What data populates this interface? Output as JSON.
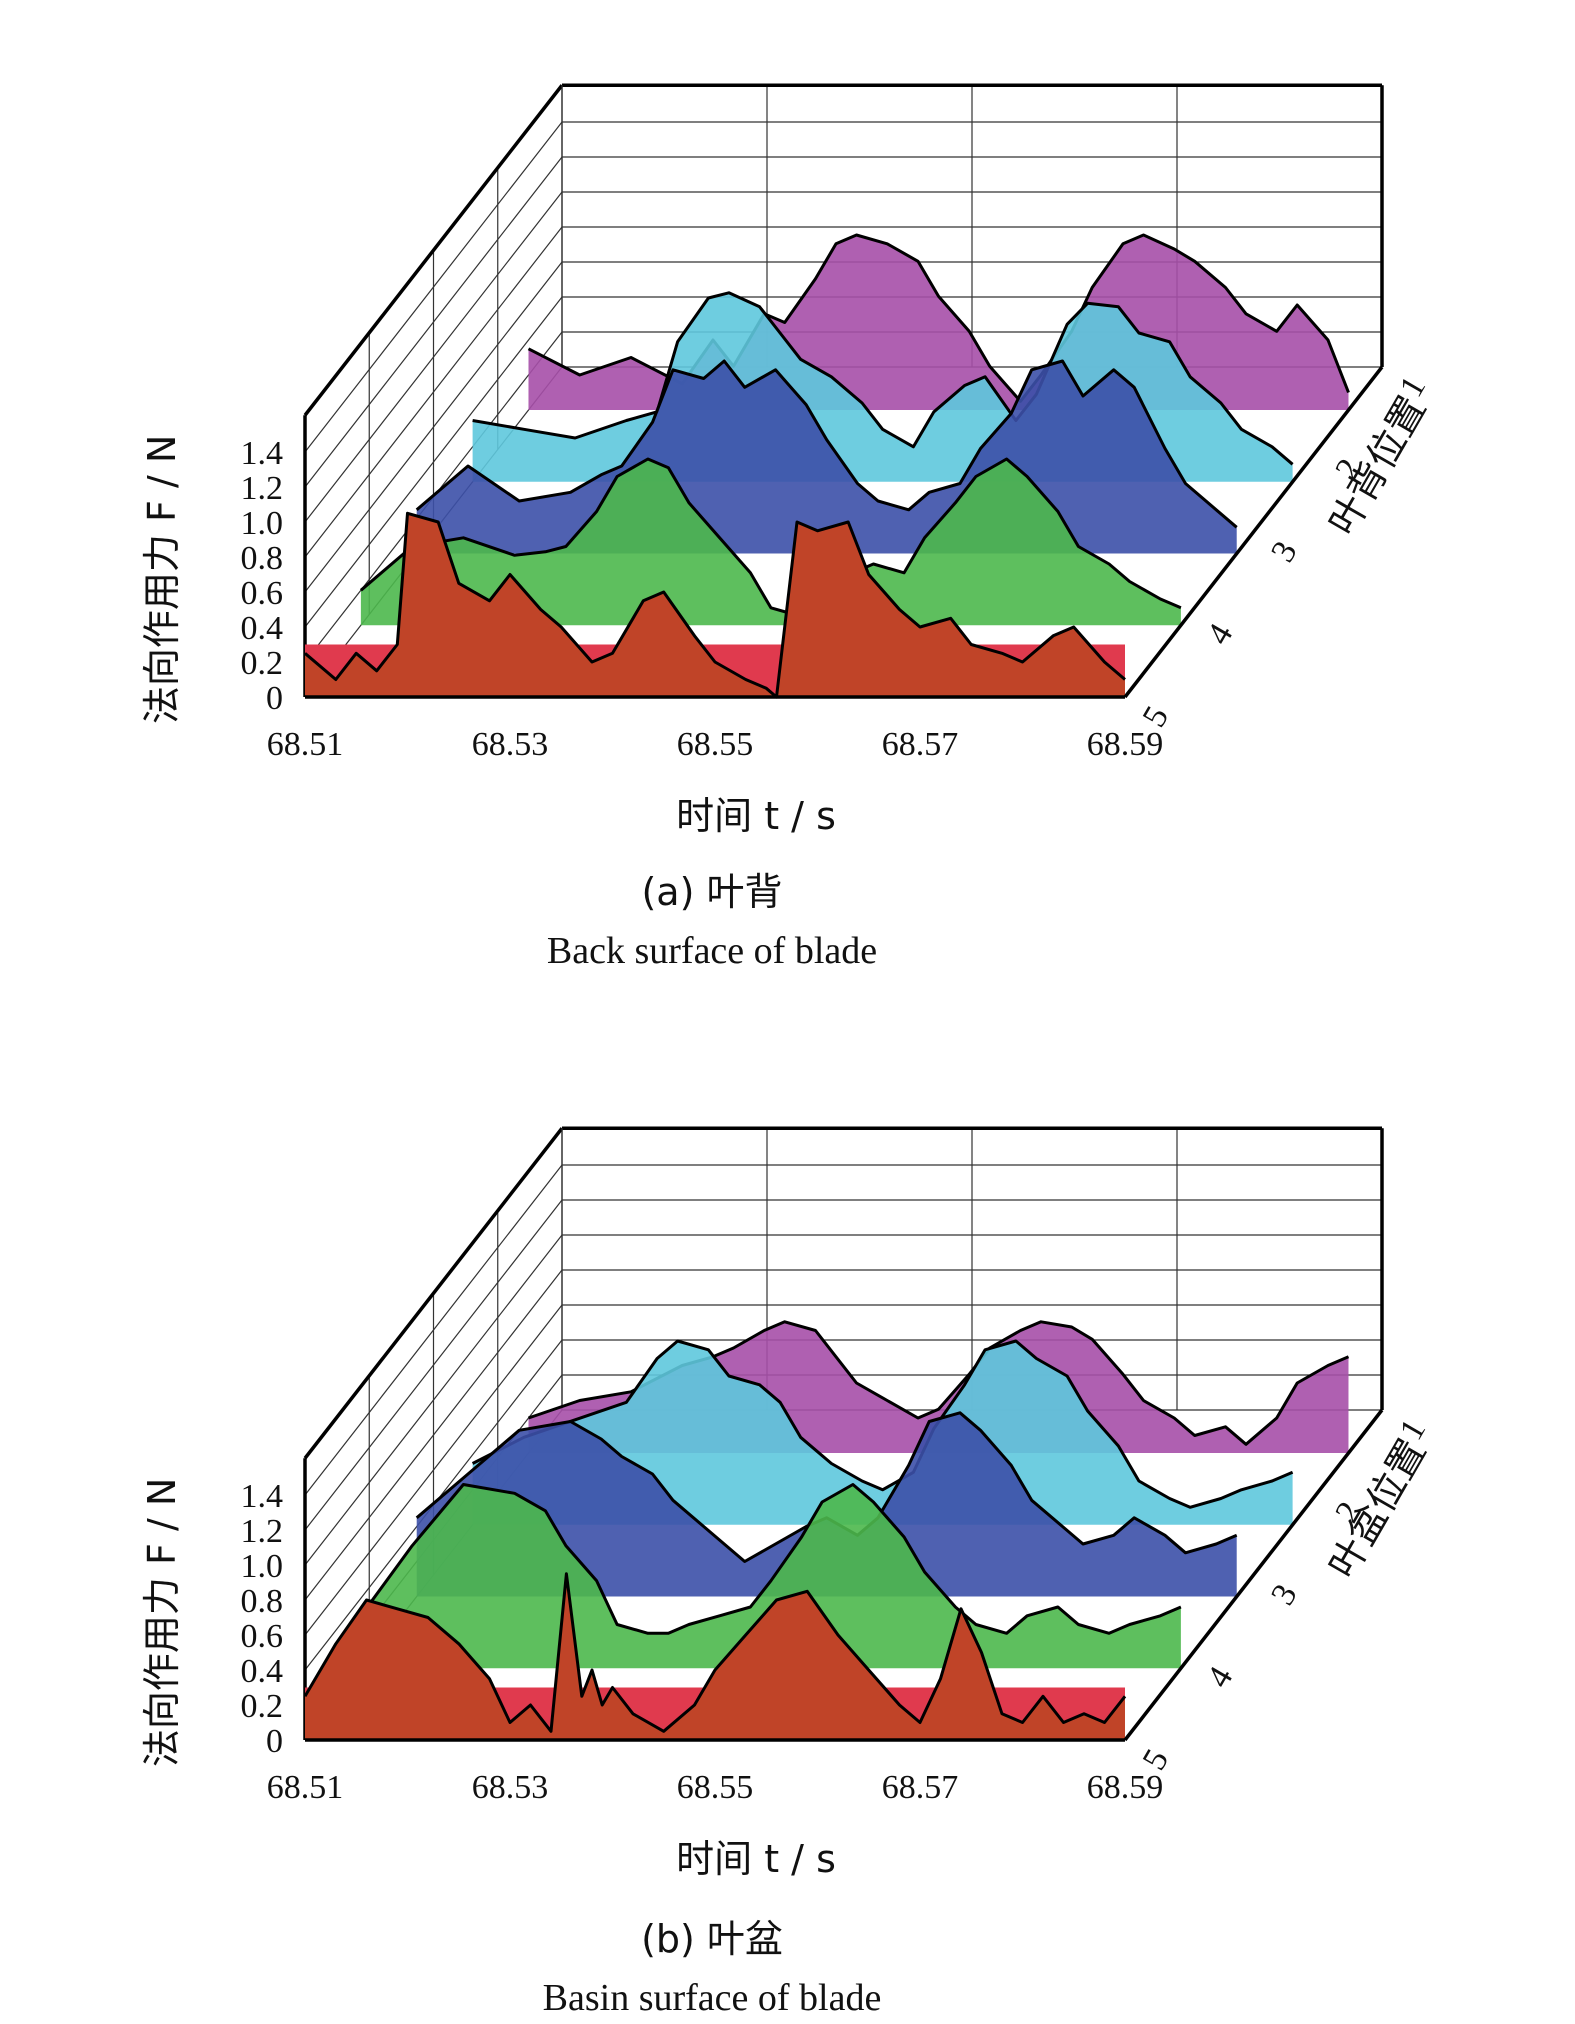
{
  "chart_data": [
    {
      "type": "area",
      "caption_cn": "(a) 叶背",
      "caption_en": "Back surface of blade",
      "xlabel": "时间 t / s",
      "ylabel": "法向作用力 F / N",
      "zlabel": "叶背位置",
      "x_ticks": [
        "68.51",
        "68.53",
        "68.55",
        "68.57",
        "68.59"
      ],
      "y_ticks": [
        "0",
        "0.2",
        "0.4",
        "0.6",
        "0.8",
        "1.0",
        "1.2",
        "1.4"
      ],
      "z_ticks": [
        "1",
        "2",
        "3",
        "4",
        "5"
      ],
      "xlim": [
        68.51,
        68.59
      ],
      "ylim": [
        0,
        1.4
      ],
      "grid": true,
      "colors": [
        "#a64fa8",
        "#5ec8dd",
        "#3c50a8",
        "#4db84d",
        "#c04428"
      ],
      "front_color": "#e03a4e",
      "series": [
        {
          "name": "1",
          "x": [
            68.51,
            68.515,
            68.52,
            68.525,
            68.528,
            68.53,
            68.533,
            68.535,
            68.538,
            68.54,
            68.542,
            68.545,
            68.548,
            68.55,
            68.553,
            68.555,
            68.558,
            68.56,
            68.563,
            68.565,
            68.568,
            68.57,
            68.573,
            68.575,
            68.578,
            68.58,
            68.583,
            68.585,
            68.588,
            68.59
          ],
          "y": [
            0.35,
            0.2,
            0.3,
            0.15,
            0.4,
            0.25,
            0.55,
            0.5,
            0.75,
            0.95,
            1.0,
            0.95,
            0.85,
            0.65,
            0.45,
            0.25,
            0.05,
            0.2,
            0.45,
            0.7,
            0.95,
            1.0,
            0.92,
            0.85,
            0.7,
            0.55,
            0.45,
            0.6,
            0.4,
            0.1
          ]
        },
        {
          "name": "2",
          "x": [
            68.51,
            68.515,
            68.52,
            68.525,
            68.528,
            68.53,
            68.533,
            68.535,
            68.538,
            68.54,
            68.542,
            68.545,
            68.548,
            68.55,
            68.553,
            68.555,
            68.558,
            68.56,
            68.563,
            68.565,
            68.568,
            68.57,
            68.573,
            68.575,
            68.578,
            68.58,
            68.583,
            68.585,
            68.588,
            68.59
          ],
          "y": [
            0.35,
            0.3,
            0.25,
            0.35,
            0.4,
            0.8,
            1.05,
            1.08,
            1.0,
            0.85,
            0.7,
            0.6,
            0.45,
            0.3,
            0.2,
            0.4,
            0.55,
            0.6,
            0.35,
            0.5,
            0.9,
            1.02,
            1.0,
            0.85,
            0.8,
            0.6,
            0.45,
            0.3,
            0.2,
            0.1
          ]
        },
        {
          "name": "3",
          "x": [
            68.51,
            68.515,
            68.52,
            68.525,
            68.528,
            68.53,
            68.533,
            68.535,
            68.538,
            68.54,
            68.542,
            68.545,
            68.548,
            68.55,
            68.553,
            68.555,
            68.558,
            68.56,
            68.563,
            68.565,
            68.568,
            68.57,
            68.573,
            68.575,
            68.578,
            68.58,
            68.583,
            68.585,
            68.588,
            68.59
          ],
          "y": [
            0.25,
            0.5,
            0.3,
            0.35,
            0.45,
            0.5,
            0.75,
            1.05,
            1.0,
            1.1,
            0.95,
            1.05,
            0.85,
            0.65,
            0.4,
            0.3,
            0.25,
            0.35,
            0.4,
            0.6,
            0.8,
            1.05,
            1.1,
            0.9,
            1.05,
            0.95,
            0.6,
            0.4,
            0.25,
            0.15
          ]
        },
        {
          "name": "4",
          "x": [
            68.51,
            68.515,
            68.52,
            68.525,
            68.528,
            68.53,
            68.533,
            68.535,
            68.538,
            68.54,
            68.542,
            68.545,
            68.548,
            68.55,
            68.553,
            68.555,
            68.558,
            68.56,
            68.563,
            68.565,
            68.568,
            68.57,
            68.573,
            68.575,
            68.578,
            68.58,
            68.583,
            68.585,
            68.588,
            68.59
          ],
          "y": [
            0.2,
            0.45,
            0.5,
            0.4,
            0.42,
            0.45,
            0.65,
            0.85,
            0.95,
            0.9,
            0.7,
            0.5,
            0.3,
            0.1,
            0.05,
            0.2,
            0.3,
            0.35,
            0.3,
            0.5,
            0.7,
            0.85,
            0.95,
            0.85,
            0.65,
            0.45,
            0.35,
            0.25,
            0.15,
            0.1
          ]
        },
        {
          "name": "5",
          "x": [
            68.51,
            68.513,
            68.515,
            68.517,
            68.519,
            68.52,
            68.523,
            68.525,
            68.528,
            68.53,
            68.533,
            68.535,
            68.538,
            68.54,
            68.543,
            68.545,
            68.548,
            68.55,
            68.553,
            68.555,
            68.556,
            68.558,
            68.56,
            68.563,
            68.565,
            68.568,
            68.57,
            68.573,
            68.575,
            68.578,
            68.58,
            68.583,
            68.585,
            68.588,
            68.59
          ],
          "y": [
            0.25,
            0.1,
            0.25,
            0.15,
            0.3,
            1.05,
            1.0,
            0.65,
            0.55,
            0.7,
            0.5,
            0.4,
            0.2,
            0.25,
            0.55,
            0.6,
            0.35,
            0.2,
            0.1,
            0.05,
            0.0,
            1.0,
            0.95,
            1.0,
            0.7,
            0.5,
            0.4,
            0.45,
            0.3,
            0.25,
            0.2,
            0.35,
            0.4,
            0.2,
            0.1
          ]
        }
      ]
    },
    {
      "type": "area",
      "caption_cn": "(b) 叶盆",
      "caption_en": "Basin surface of blade",
      "xlabel": "时间 t / s",
      "ylabel": "法向作用力 F / N",
      "zlabel": "叶盆位置",
      "x_ticks": [
        "68.51",
        "68.53",
        "68.55",
        "68.57",
        "68.59"
      ],
      "y_ticks": [
        "0",
        "0.2",
        "0.4",
        "0.6",
        "0.8",
        "1.0",
        "1.2",
        "1.4"
      ],
      "z_ticks": [
        "1",
        "2",
        "3",
        "4",
        "5"
      ],
      "xlim": [
        68.51,
        68.59
      ],
      "ylim": [
        0,
        1.4
      ],
      "grid": true,
      "colors": [
        "#a64fa8",
        "#5ec8dd",
        "#3c50a8",
        "#4db84d",
        "#c04428"
      ],
      "front_color": "#e03a4e",
      "series": [
        {
          "name": "1",
          "x": [
            68.51,
            68.515,
            68.52,
            68.525,
            68.528,
            68.53,
            68.533,
            68.535,
            68.538,
            68.54,
            68.542,
            68.545,
            68.548,
            68.55,
            68.553,
            68.555,
            68.558,
            68.56,
            68.563,
            68.565,
            68.568,
            68.57,
            68.573,
            68.575,
            68.578,
            68.58,
            68.583,
            68.585,
            68.588,
            68.59
          ],
          "y": [
            0.2,
            0.3,
            0.35,
            0.5,
            0.55,
            0.6,
            0.7,
            0.75,
            0.7,
            0.55,
            0.4,
            0.3,
            0.2,
            0.25,
            0.45,
            0.6,
            0.7,
            0.75,
            0.72,
            0.65,
            0.45,
            0.3,
            0.2,
            0.1,
            0.15,
            0.05,
            0.2,
            0.4,
            0.5,
            0.55
          ]
        },
        {
          "name": "2",
          "x": [
            68.51,
            68.515,
            68.52,
            68.525,
            68.528,
            68.53,
            68.533,
            68.535,
            68.538,
            68.54,
            68.542,
            68.545,
            68.548,
            68.55,
            68.553,
            68.555,
            68.558,
            68.56,
            68.563,
            68.565,
            68.568,
            68.57,
            68.573,
            68.575,
            68.578,
            68.58,
            68.583,
            68.585,
            68.588,
            68.59
          ],
          "y": [
            0.35,
            0.5,
            0.6,
            0.7,
            0.95,
            1.05,
            1.0,
            0.85,
            0.8,
            0.7,
            0.5,
            0.35,
            0.25,
            0.2,
            0.3,
            0.55,
            0.8,
            1.0,
            1.05,
            0.95,
            0.85,
            0.65,
            0.45,
            0.25,
            0.15,
            0.1,
            0.15,
            0.2,
            0.25,
            0.3
          ]
        },
        {
          "name": "3",
          "x": [
            68.51,
            68.515,
            68.52,
            68.525,
            68.528,
            68.53,
            68.533,
            68.535,
            68.538,
            68.54,
            68.542,
            68.545,
            68.548,
            68.55,
            68.553,
            68.555,
            68.558,
            68.56,
            68.563,
            68.565,
            68.568,
            68.57,
            68.573,
            68.575,
            68.578,
            68.58,
            68.583,
            68.585,
            68.588,
            68.59
          ],
          "y": [
            0.45,
            0.7,
            0.95,
            1.0,
            0.9,
            0.8,
            0.7,
            0.55,
            0.4,
            0.3,
            0.2,
            0.3,
            0.4,
            0.45,
            0.35,
            0.45,
            0.75,
            1.0,
            1.05,
            0.95,
            0.75,
            0.55,
            0.4,
            0.3,
            0.35,
            0.45,
            0.35,
            0.25,
            0.3,
            0.35
          ]
        },
        {
          "name": "4",
          "x": [
            68.51,
            68.515,
            68.52,
            68.525,
            68.528,
            68.53,
            68.533,
            68.535,
            68.538,
            68.54,
            68.542,
            68.545,
            68.548,
            68.55,
            68.553,
            68.555,
            68.558,
            68.56,
            68.563,
            68.565,
            68.568,
            68.57,
            68.573,
            68.575,
            68.578,
            68.58,
            68.583,
            68.585,
            68.588,
            68.59
          ],
          "y": [
            0.3,
            0.7,
            1.05,
            1.0,
            0.9,
            0.7,
            0.5,
            0.25,
            0.2,
            0.2,
            0.25,
            0.3,
            0.35,
            0.5,
            0.75,
            0.95,
            1.05,
            0.95,
            0.75,
            0.55,
            0.35,
            0.25,
            0.2,
            0.3,
            0.35,
            0.25,
            0.2,
            0.25,
            0.3,
            0.35
          ]
        },
        {
          "name": "5",
          "x": [
            68.51,
            68.513,
            68.516,
            68.519,
            68.522,
            68.525,
            68.528,
            68.53,
            68.532,
            68.534,
            68.5355,
            68.537,
            68.538,
            68.539,
            68.54,
            68.542,
            68.545,
            68.548,
            68.55,
            68.553,
            68.556,
            68.559,
            68.562,
            68.565,
            68.568,
            68.57,
            68.572,
            68.574,
            68.576,
            68.578,
            68.58,
            68.582,
            68.584,
            68.586,
            68.588,
            68.59
          ],
          "y": [
            0.25,
            0.55,
            0.8,
            0.75,
            0.7,
            0.55,
            0.35,
            0.1,
            0.2,
            0.05,
            0.95,
            0.25,
            0.4,
            0.2,
            0.3,
            0.15,
            0.05,
            0.2,
            0.4,
            0.6,
            0.8,
            0.85,
            0.6,
            0.4,
            0.2,
            0.1,
            0.35,
            0.75,
            0.5,
            0.15,
            0.1,
            0.25,
            0.1,
            0.15,
            0.1,
            0.25
          ]
        }
      ]
    }
  ]
}
